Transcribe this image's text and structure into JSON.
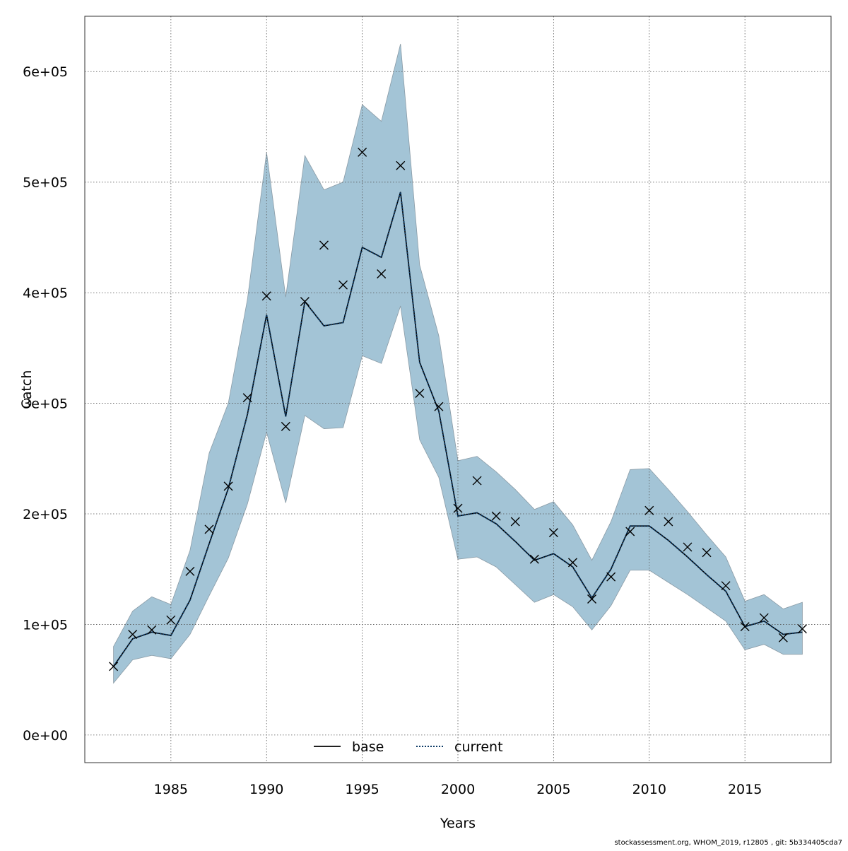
{
  "chart_data": {
    "type": "line",
    "xlabel": "Years",
    "ylabel": "Catch",
    "xlim": [
      1980.5,
      2019.5
    ],
    "ylim": [
      -25000,
      650000
    ],
    "x_ticks": [
      1985,
      1990,
      1995,
      2000,
      2005,
      2010,
      2015
    ],
    "y_ticks": [
      0,
      100000,
      200000,
      300000,
      400000,
      500000,
      600000
    ],
    "y_tick_labels": [
      "0e+00",
      "1e+05",
      "2e+05",
      "3e+05",
      "4e+05",
      "5e+05",
      "6e+05"
    ],
    "grid": true,
    "legend_position": "bottom-center",
    "x": [
      1982,
      1983,
      1984,
      1985,
      1986,
      1987,
      1988,
      1989,
      1990,
      1991,
      1992,
      1993,
      1994,
      1995,
      1996,
      1997,
      1998,
      1999,
      2000,
      2001,
      2002,
      2003,
      2004,
      2005,
      2006,
      2007,
      2008,
      2009,
      2010,
      2011,
      2012,
      2013,
      2014,
      2015,
      2016,
      2017,
      2018
    ],
    "series": [
      {
        "name": "base",
        "style": "solid",
        "color": "#000000",
        "values": [
          62000,
          87000,
          93000,
          90000,
          122000,
          173000,
          223000,
          290000,
          380000,
          288000,
          392000,
          370000,
          373000,
          441000,
          432000,
          491000,
          337000,
          293000,
          198000,
          201000,
          191000,
          175000,
          158000,
          164000,
          152000,
          124000,
          150000,
          189000,
          189000,
          176000,
          161000,
          145000,
          130000,
          98000,
          103000,
          91000,
          93000
        ]
      },
      {
        "name": "current",
        "style": "dotted",
        "color": "#0d3b66",
        "values": [
          62000,
          87000,
          93000,
          90000,
          122000,
          173000,
          223000,
          290000,
          380000,
          288000,
          392000,
          370000,
          373000,
          441000,
          432000,
          491000,
          337000,
          293000,
          198000,
          201000,
          191000,
          175000,
          158000,
          164000,
          152000,
          124000,
          150000,
          189000,
          189000,
          176000,
          161000,
          145000,
          130000,
          98000,
          103000,
          91000,
          93000
        ]
      }
    ],
    "band": {
      "color": "#a3c4d6",
      "lower": [
        47000,
        68000,
        72000,
        69000,
        91000,
        126000,
        160000,
        209000,
        274000,
        210000,
        289000,
        277000,
        278000,
        343000,
        336000,
        388000,
        267000,
        233000,
        159000,
        161000,
        152000,
        136000,
        120000,
        127000,
        116000,
        95000,
        117000,
        149000,
        149000,
        138000,
        127000,
        115000,
        103000,
        77000,
        82000,
        73000,
        73000
      ],
      "upper": [
        80000,
        112000,
        125000,
        118000,
        167000,
        255000,
        300000,
        394000,
        527000,
        396000,
        524000,
        493000,
        500000,
        570000,
        555000,
        625000,
        425000,
        361000,
        248000,
        252000,
        238000,
        222000,
        204000,
        211000,
        190000,
        158000,
        193000,
        240000,
        241000,
        222000,
        202000,
        181000,
        161000,
        121000,
        127000,
        114000,
        120000
      ]
    },
    "observed": {
      "marker": "x",
      "values": [
        62000,
        91000,
        95000,
        104000,
        148000,
        186000,
        225000,
        305000,
        397000,
        279000,
        392000,
        443000,
        407000,
        527000,
        417000,
        515000,
        309000,
        297000,
        205000,
        230000,
        198000,
        193000,
        159000,
        183000,
        156000,
        123000,
        143000,
        184000,
        203000,
        193000,
        170000,
        165000,
        135000,
        98000,
        106000,
        88000,
        96000
      ]
    }
  },
  "footer": {
    "text": "stockassessment.org, WHOM_2019, r12805 , git: 5b334405cda7"
  }
}
